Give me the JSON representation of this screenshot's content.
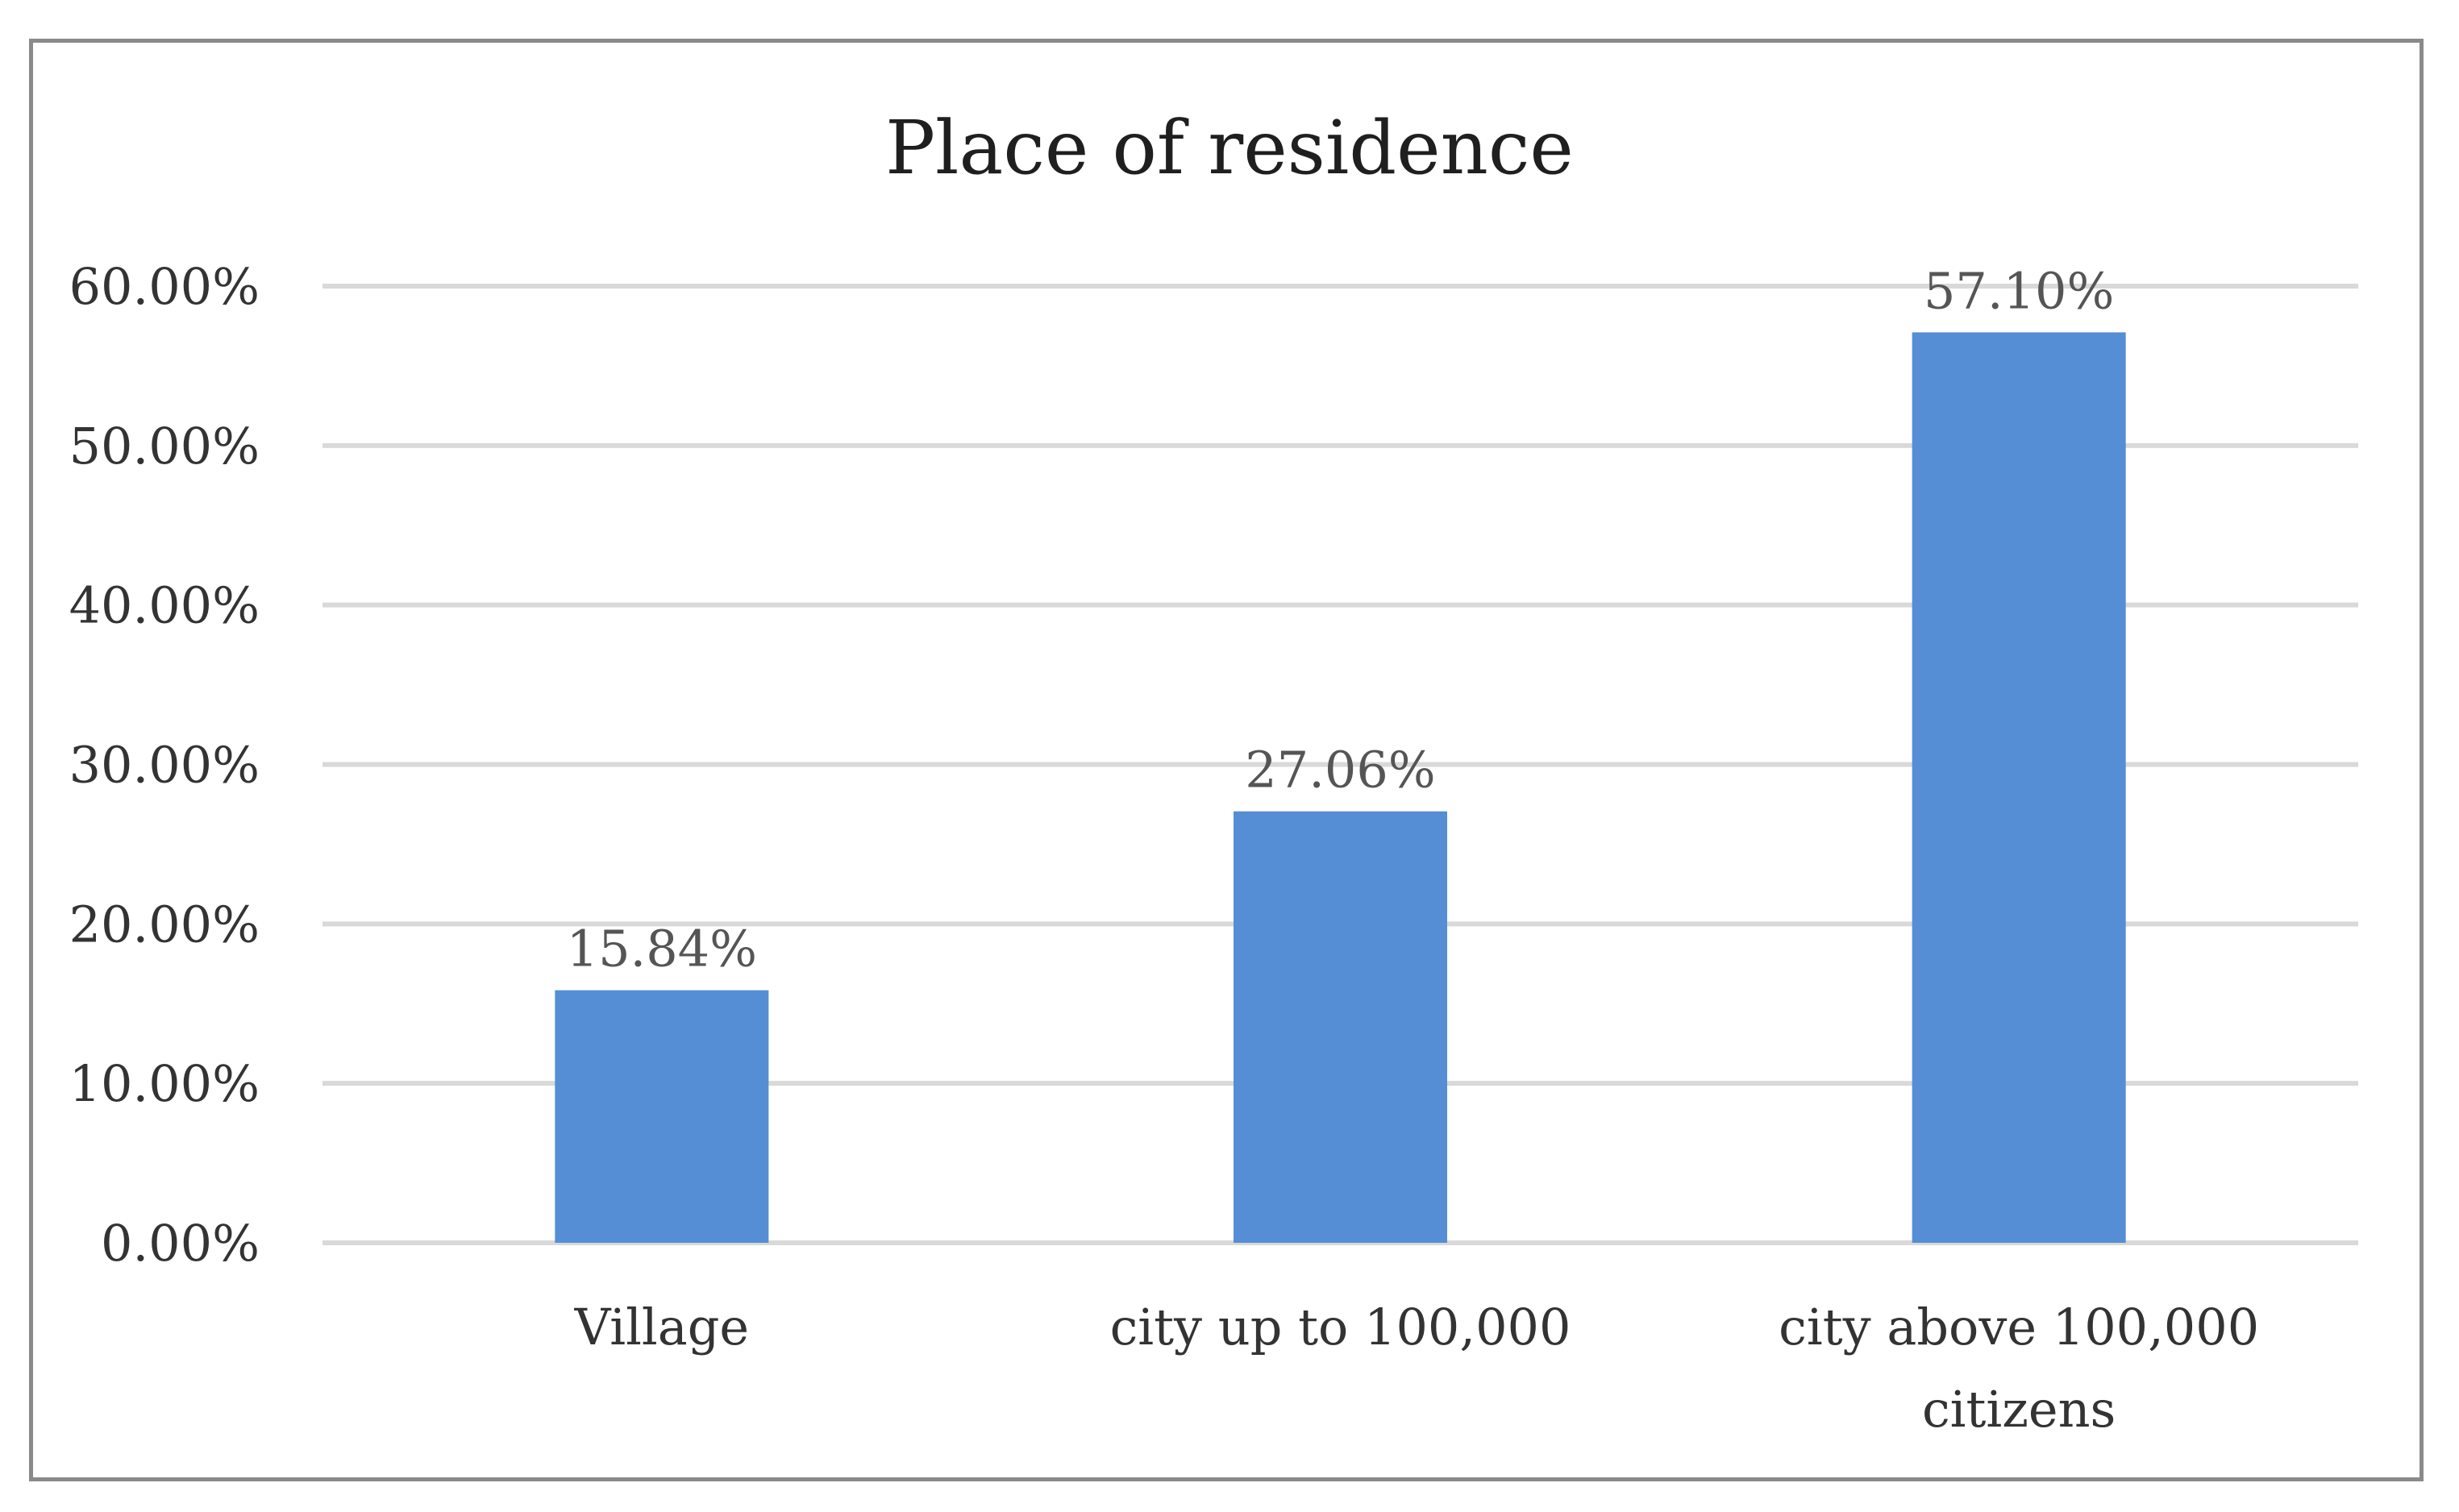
{
  "chart_data": {
    "type": "bar",
    "title": "Place of residence",
    "xlabel": "",
    "ylabel": "",
    "categories": [
      [
        "Village"
      ],
      [
        "city up to 100,000"
      ],
      [
        "city above 100,000",
        "citizens"
      ]
    ],
    "values": [
      15.84,
      27.06,
      57.1
    ],
    "data_labels": [
      "15.84%",
      "27.06%",
      "57.10%"
    ],
    "ylim": [
      0,
      60
    ],
    "yticks": [
      0,
      10,
      20,
      30,
      40,
      50,
      60
    ],
    "ytick_labels": [
      "0.00%",
      "10.00%",
      "20.00%",
      "30.00%",
      "40.00%",
      "50.00%",
      "60.00%"
    ],
    "grid": true,
    "legend": "none",
    "bar_color": "#558ed5",
    "grid_color": "#d9d9d9",
    "border_color": "#8a8a8a"
  }
}
